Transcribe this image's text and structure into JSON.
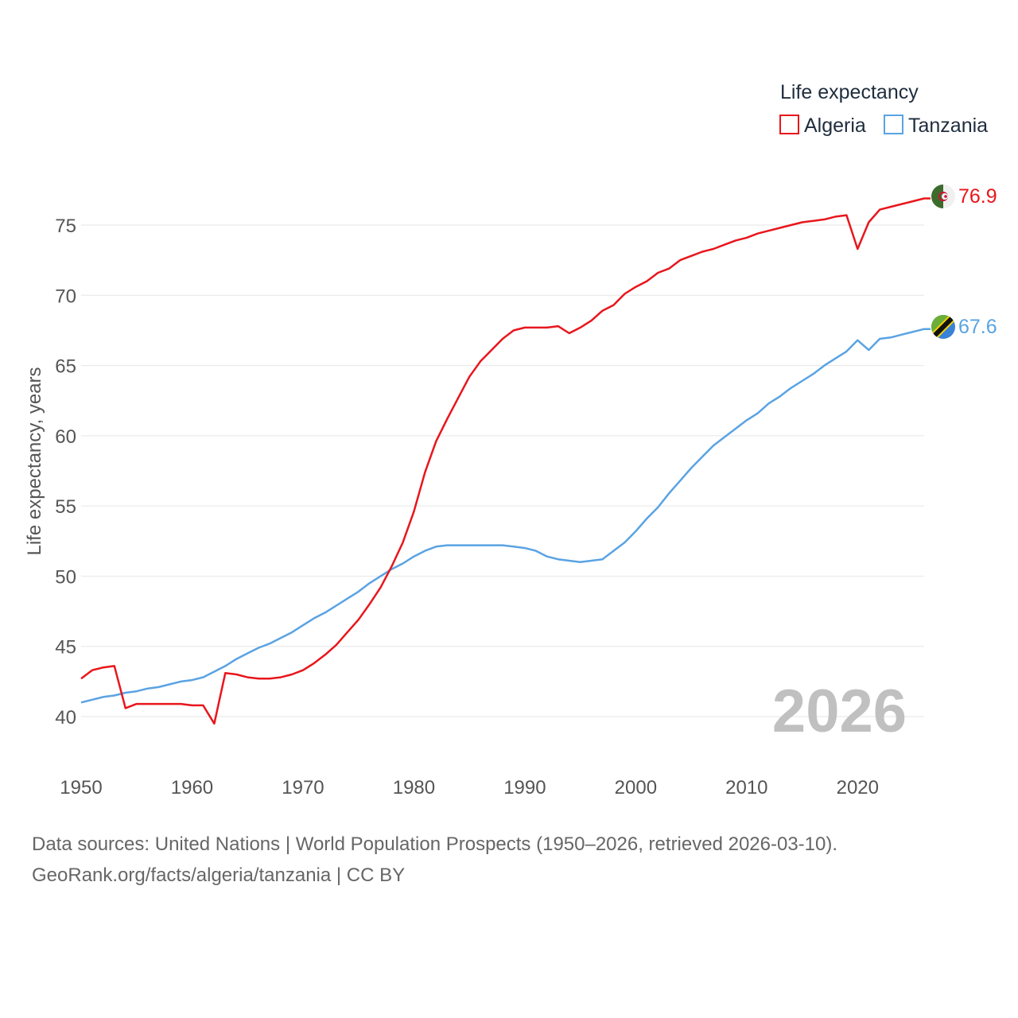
{
  "chart_data": {
    "type": "line",
    "legend_title": "Life expectancy",
    "ylabel": "Life expectancy, years",
    "xlabel": "",
    "xlim": [
      1950,
      2026
    ],
    "ylim": [
      38,
      78
    ],
    "xticks": [
      1950,
      1960,
      1970,
      1980,
      1990,
      2000,
      2010,
      2020
    ],
    "yticks": [
      40,
      45,
      50,
      55,
      60,
      65,
      70,
      75
    ],
    "year_label": "2026",
    "legend_position": "top-right",
    "series": [
      {
        "name": "Algeria",
        "color": "#e8161c",
        "end_label": "76.9",
        "x": [
          1950,
          1951,
          1952,
          1953,
          1954,
          1955,
          1956,
          1957,
          1958,
          1959,
          1960,
          1961,
          1962,
          1963,
          1964,
          1965,
          1966,
          1967,
          1968,
          1969,
          1970,
          1971,
          1972,
          1973,
          1974,
          1975,
          1976,
          1977,
          1978,
          1979,
          1980,
          1981,
          1982,
          1983,
          1984,
          1985,
          1986,
          1987,
          1988,
          1989,
          1990,
          1991,
          1992,
          1993,
          1994,
          1995,
          1996,
          1997,
          1998,
          1999,
          2000,
          2001,
          2002,
          2003,
          2004,
          2005,
          2006,
          2007,
          2008,
          2009,
          2010,
          2011,
          2012,
          2013,
          2014,
          2015,
          2016,
          2017,
          2018,
          2019,
          2020,
          2021,
          2022,
          2023,
          2024,
          2025,
          2026
        ],
        "values": [
          42.7,
          43.3,
          43.5,
          43.6,
          40.6,
          40.9,
          40.9,
          40.9,
          40.9,
          40.9,
          40.8,
          40.8,
          39.5,
          43.1,
          43.0,
          42.8,
          42.7,
          42.7,
          42.8,
          43.0,
          43.3,
          43.8,
          44.4,
          45.1,
          46.0,
          46.9,
          48.0,
          49.2,
          50.7,
          52.4,
          54.6,
          57.4,
          59.6,
          61.2,
          62.7,
          64.2,
          65.3,
          66.1,
          66.9,
          67.5,
          67.7,
          67.7,
          67.7,
          67.8,
          67.3,
          67.7,
          68.2,
          68.9,
          69.3,
          70.1,
          70.6,
          71.0,
          71.6,
          71.9,
          72.5,
          72.8,
          73.1,
          73.3,
          73.6,
          73.9,
          74.1,
          74.4,
          74.6,
          74.8,
          75.0,
          75.2,
          75.3,
          75.4,
          75.6,
          75.7,
          73.3,
          75.2,
          76.1,
          76.3,
          76.5,
          76.7,
          76.9
        ]
      },
      {
        "name": "Tanzania",
        "color": "#5aa3e3",
        "end_label": "67.6",
        "x": [
          1950,
          1951,
          1952,
          1953,
          1954,
          1955,
          1956,
          1957,
          1958,
          1959,
          1960,
          1961,
          1962,
          1963,
          1964,
          1965,
          1966,
          1967,
          1968,
          1969,
          1970,
          1971,
          1972,
          1973,
          1974,
          1975,
          1976,
          1977,
          1978,
          1979,
          1980,
          1981,
          1982,
          1983,
          1984,
          1985,
          1986,
          1987,
          1988,
          1989,
          1990,
          1991,
          1992,
          1993,
          1994,
          1995,
          1996,
          1997,
          1998,
          1999,
          2000,
          2001,
          2002,
          2003,
          2004,
          2005,
          2006,
          2007,
          2008,
          2009,
          2010,
          2011,
          2012,
          2013,
          2014,
          2015,
          2016,
          2017,
          2018,
          2019,
          2020,
          2021,
          2022,
          2023,
          2024,
          2025,
          2026
        ],
        "values": [
          41.0,
          41.2,
          41.4,
          41.5,
          41.7,
          41.8,
          42.0,
          42.1,
          42.3,
          42.5,
          42.6,
          42.8,
          43.2,
          43.6,
          44.1,
          44.5,
          44.9,
          45.2,
          45.6,
          46.0,
          46.5,
          47.0,
          47.4,
          47.9,
          48.4,
          48.9,
          49.5,
          50.0,
          50.5,
          50.9,
          51.4,
          51.8,
          52.1,
          52.2,
          52.2,
          52.2,
          52.2,
          52.2,
          52.2,
          52.1,
          52.0,
          51.8,
          51.4,
          51.2,
          51.1,
          51.0,
          51.1,
          51.2,
          51.8,
          52.4,
          53.2,
          54.1,
          54.9,
          55.9,
          56.8,
          57.7,
          58.5,
          59.3,
          59.9,
          60.5,
          61.1,
          61.6,
          62.3,
          62.8,
          63.4,
          63.9,
          64.4,
          65.0,
          65.5,
          66.0,
          66.8,
          66.1,
          66.9,
          67.0,
          67.2,
          67.4,
          67.6
        ]
      }
    ]
  },
  "source": {
    "line1": "Data sources: United Nations | World Population Prospects (1950–2026, retrieved 2026-03-10).",
    "line2": "GeoRank.org/facts/algeria/tanzania | CC BY"
  },
  "icons": {
    "algeria_flag": "algeria-flag-icon",
    "tanzania_flag": "tanzania-flag-icon"
  }
}
